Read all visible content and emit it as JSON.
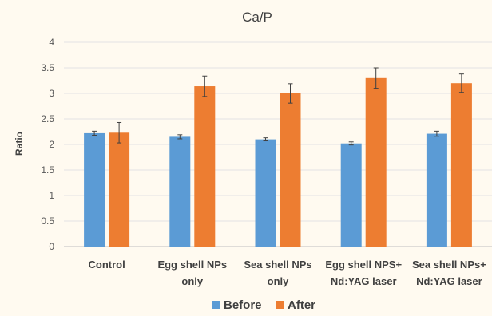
{
  "chart_data": {
    "type": "bar",
    "title": "Ca/P",
    "xlabel": "",
    "ylabel": "Ratio",
    "ylim": [
      0,
      4
    ],
    "yticks": [
      "0",
      "0.5",
      "1",
      "1.5",
      "2",
      "2.5",
      "3",
      "3.5",
      "4"
    ],
    "categories": [
      [
        "Control"
      ],
      [
        "Egg shell  NPs",
        "only"
      ],
      [
        "Sea shell  NPs",
        "only"
      ],
      [
        "Egg shell NPS+",
        "Nd:YAG laser"
      ],
      [
        "Sea shell NPs+",
        "Nd:YAG laser"
      ]
    ],
    "series": [
      {
        "name": "Before",
        "color": "#5b9bd5",
        "values": [
          2.22,
          2.15,
          2.1,
          2.02,
          2.21
        ],
        "errors": [
          0.04,
          0.04,
          0.03,
          0.03,
          0.05
        ]
      },
      {
        "name": "After",
        "color": "#ed7d31",
        "values": [
          2.23,
          3.14,
          3.0,
          3.3,
          3.2
        ],
        "errors": [
          0.2,
          0.2,
          0.19,
          0.2,
          0.18
        ]
      }
    ],
    "grid": true,
    "legend_position": "bottom"
  }
}
